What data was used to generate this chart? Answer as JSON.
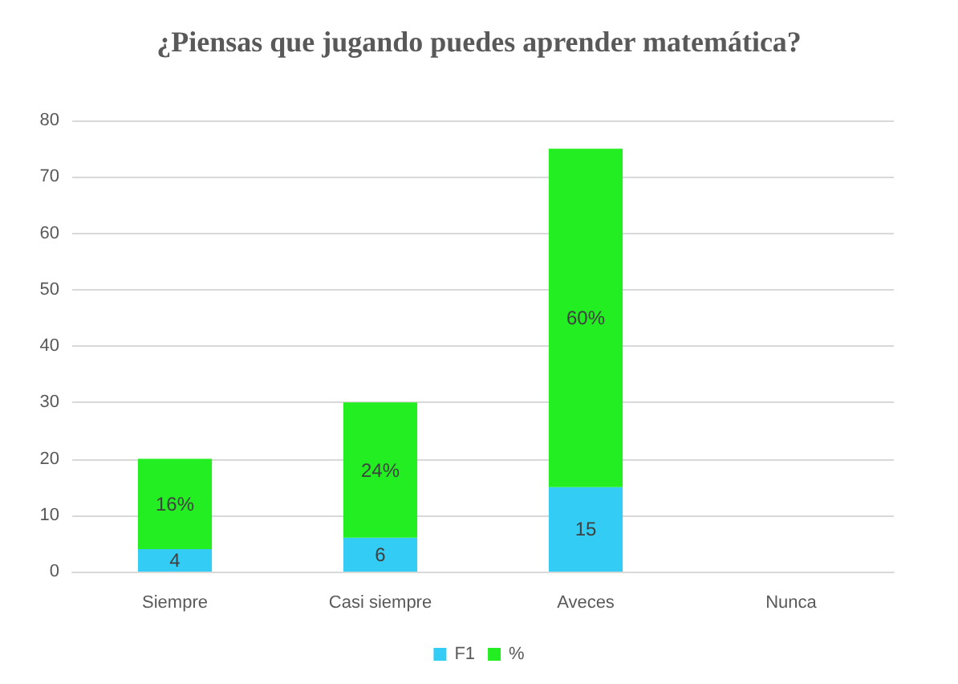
{
  "chart_data": {
    "type": "bar",
    "title": "¿Piensas que jugando puedes aprender matemática?",
    "categories": [
      "Siempre",
      "Casi siempre",
      "Aveces",
      "Nunca"
    ],
    "stacked": true,
    "series": [
      {
        "name": "F1",
        "color": "#33ccf5",
        "values": [
          4,
          6,
          15,
          0
        ],
        "value_labels": [
          "4",
          "6",
          "15",
          null
        ]
      },
      {
        "name": "%",
        "color": "#22ee22",
        "values": [
          16,
          24,
          60,
          0
        ],
        "value_labels": [
          "16%",
          "24%",
          "60%",
          null
        ]
      }
    ],
    "ylim": [
      0,
      80
    ],
    "yticks": [
      0,
      10,
      20,
      30,
      40,
      50,
      60,
      70,
      80
    ],
    "grid": "y",
    "legend": "bottom"
  }
}
